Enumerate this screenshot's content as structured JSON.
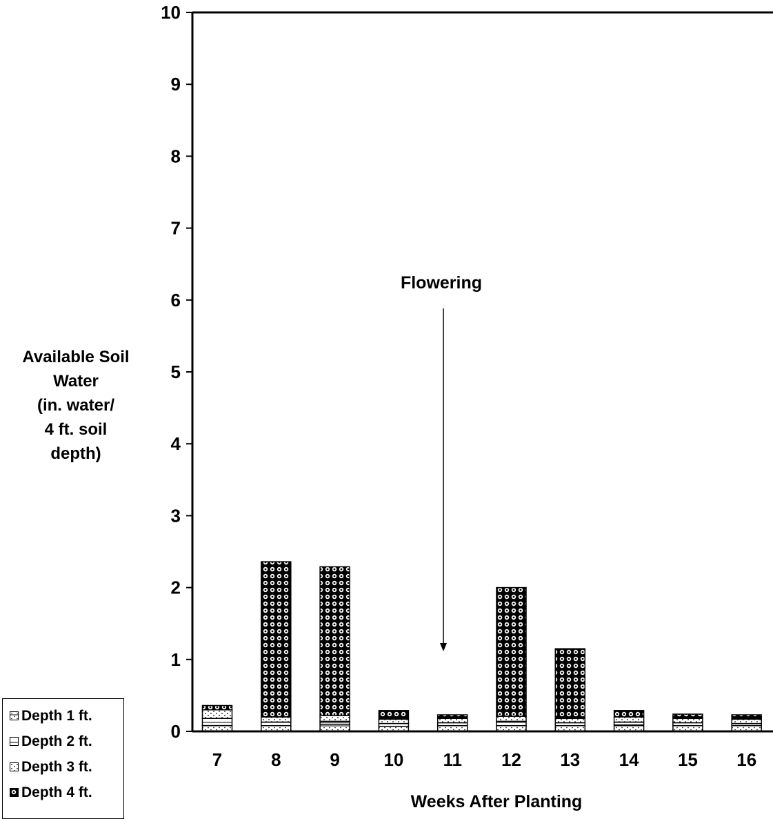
{
  "chart_data": {
    "type": "bar",
    "stacked": true,
    "categories": [
      "7",
      "8",
      "9",
      "10",
      "11",
      "12",
      "13",
      "14",
      "15",
      "16"
    ],
    "series": [
      {
        "name": "Depth 1 ft.",
        "values": [
          0.08,
          0.08,
          0.1,
          0.07,
          0.08,
          0.08,
          0.08,
          0.09,
          0.08,
          0.08
        ],
        "pattern": "pat-d1"
      },
      {
        "name": "Depth 2 ft.",
        "values": [
          0.1,
          0.05,
          0.04,
          0.04,
          0.04,
          0.06,
          0.04,
          0.04,
          0.04,
          0.03
        ],
        "pattern": "pat-d2"
      },
      {
        "name": "Depth 3 ft.",
        "values": [
          0.12,
          0.07,
          0.08,
          0.06,
          0.06,
          0.07,
          0.06,
          0.07,
          0.06,
          0.06
        ],
        "pattern": "pat-d3"
      },
      {
        "name": "Depth 4 ft.",
        "values": [
          0.06,
          2.16,
          2.07,
          0.12,
          0.05,
          1.79,
          0.97,
          0.09,
          0.06,
          0.06
        ],
        "pattern": "pat-d4"
      }
    ],
    "xlabel": "Weeks After Planting",
    "ylabel": [
      "Available Soil",
      "Water",
      "(in. water/",
      "4 ft. soil",
      "depth)"
    ],
    "ylim": [
      0,
      10
    ],
    "yticks": [
      0,
      1,
      2,
      3,
      4,
      5,
      6,
      7,
      8,
      9,
      10
    ],
    "grid": false,
    "legend_position": "bottom-left",
    "annotation": {
      "text": "Flowering",
      "points_to_category": "11",
      "arrow_tip_value": 1.1
    }
  }
}
